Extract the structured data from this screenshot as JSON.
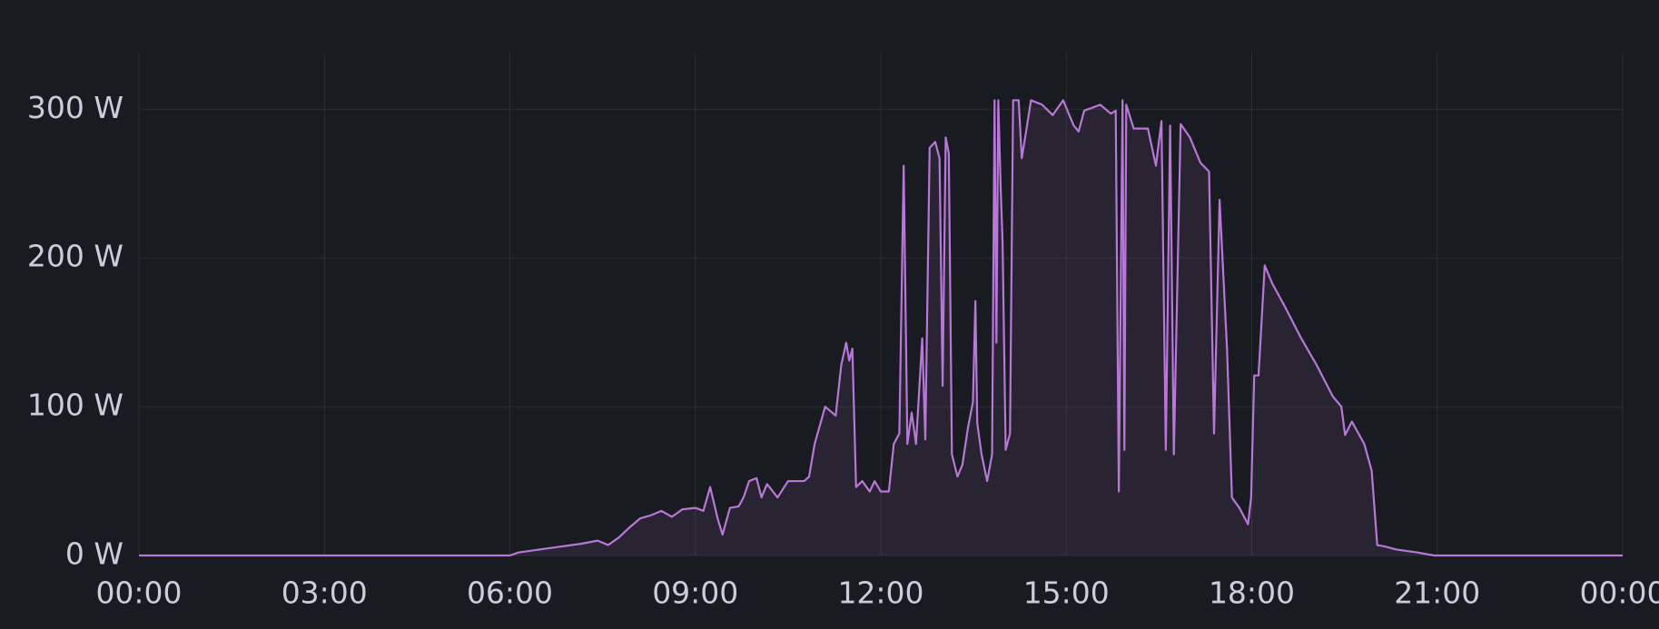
{
  "chart_data": {
    "type": "line",
    "x": [
      0,
      6.0,
      6.14,
      6.65,
      7.17,
      7.42,
      7.59,
      7.76,
      7.94,
      8.11,
      8.28,
      8.45,
      8.62,
      8.79,
      9.0,
      9.13,
      9.24,
      9.36,
      9.44,
      9.56,
      9.7,
      9.78,
      9.87,
      9.99,
      10.07,
      10.16,
      10.33,
      10.5,
      10.76,
      10.84,
      10.93,
      11.1,
      11.27,
      11.36,
      11.44,
      11.49,
      11.54,
      11.6,
      11.7,
      11.82,
      11.9,
      12.0,
      12.13,
      12.21,
      12.3,
      12.37,
      12.43,
      12.5,
      12.57,
      12.67,
      12.72,
      12.79,
      12.88,
      12.95,
      13.0,
      13.05,
      13.1,
      13.15,
      13.24,
      13.32,
      13.41,
      13.49,
      13.53,
      13.56,
      13.63,
      13.72,
      13.8,
      13.84,
      13.87,
      13.9,
      13.94,
      13.97,
      14.02,
      14.09,
      14.14,
      14.23,
      14.28,
      14.35,
      14.43,
      14.61,
      14.78,
      14.95,
      15.12,
      15.2,
      15.29,
      15.55,
      15.72,
      15.8,
      15.85,
      15.91,
      15.94,
      15.97,
      16.09,
      16.32,
      16.45,
      16.54,
      16.61,
      16.68,
      16.74,
      16.85,
      17.0,
      17.17,
      17.31,
      17.39,
      17.48,
      17.6,
      17.68,
      17.8,
      17.94,
      17.99,
      18.04,
      18.11,
      18.21,
      18.33,
      18.54,
      18.8,
      19.05,
      19.31,
      19.45,
      19.51,
      19.62,
      19.82,
      19.94,
      20.03,
      20.16,
      20.34,
      20.68,
      20.95,
      24.0
    ],
    "series": [
      {
        "color": "#b877d9",
        "values": [
          0,
          0,
          2,
          5,
          8,
          10,
          7,
          12,
          19,
          25,
          27,
          30,
          26,
          31,
          32,
          30,
          46,
          25,
          14,
          32,
          33,
          39,
          50,
          52,
          39,
          48,
          39,
          50,
          50,
          53,
          75,
          100,
          94,
          128,
          143,
          131,
          139,
          46,
          50,
          43,
          50,
          43,
          43,
          75,
          82,
          262,
          75,
          96,
          75,
          146,
          78,
          274,
          278,
          267,
          114,
          281,
          270,
          68,
          53,
          61,
          86,
          103,
          171,
          89,
          68,
          50,
          68,
          306,
          143,
          306,
          246,
          210,
          71,
          82,
          306,
          306,
          267,
          285,
          306,
          303,
          296,
          306,
          289,
          285,
          299,
          303,
          297,
          299,
          43,
          306,
          71,
          303,
          287,
          287,
          262,
          292,
          71,
          289,
          68,
          290,
          281,
          264,
          258,
          82,
          239,
          139,
          39,
          32,
          21,
          39,
          121,
          121,
          195,
          183,
          167,
          146,
          128,
          107,
          100,
          81,
          90,
          75,
          57,
          7,
          6,
          4,
          2,
          0,
          0
        ]
      }
    ],
    "xlim": [
      0,
      24
    ],
    "xticks": [
      {
        "value": 0,
        "label": "00:00"
      },
      {
        "value": 3,
        "label": "03:00"
      },
      {
        "value": 6,
        "label": "06:00"
      },
      {
        "value": 9,
        "label": "09:00"
      },
      {
        "value": 12,
        "label": "12:00"
      },
      {
        "value": 15,
        "label": "15:00"
      },
      {
        "value": 18,
        "label": "18:00"
      },
      {
        "value": 21,
        "label": "21:00"
      },
      {
        "value": 24,
        "label": "00:00"
      }
    ],
    "ylim": [
      0,
      338
    ],
    "yticks": [
      {
        "value": 0,
        "label": "0 W"
      },
      {
        "value": 100,
        "label": "100 W"
      },
      {
        "value": 200,
        "label": "200 W"
      },
      {
        "value": 300,
        "label": "300 W"
      }
    ],
    "grid": true
  }
}
